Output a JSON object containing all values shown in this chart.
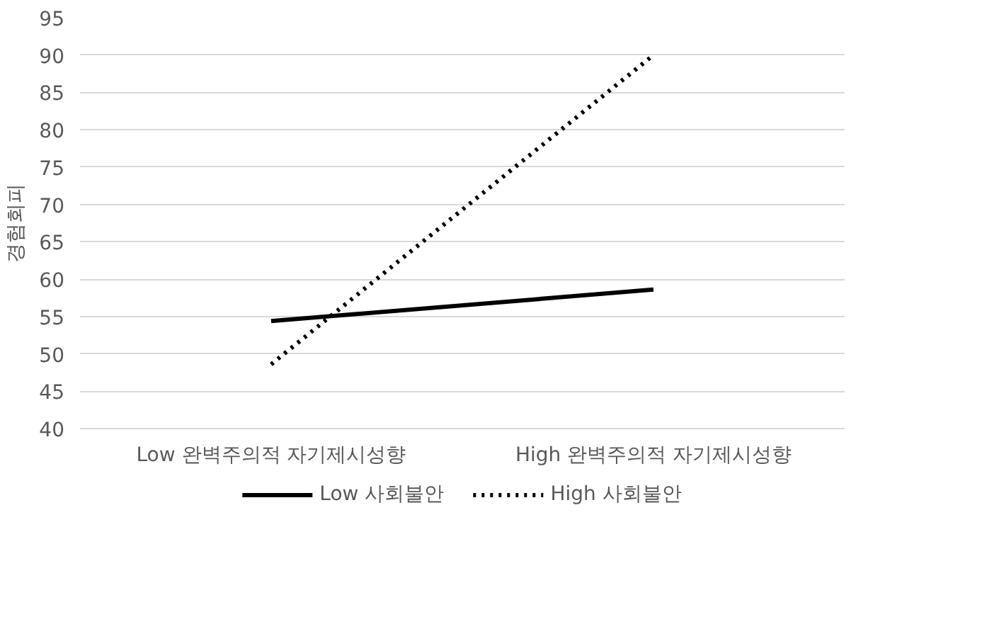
{
  "chart_data": {
    "type": "line",
    "ylabel": "경험회피",
    "categories": [
      "Low 완벽주의적 자기제시성향",
      "High 완벽주의적 자기제시성향"
    ],
    "series": [
      {
        "name": "Low 사회불안",
        "color": "#000000",
        "values": [
          54.4,
          58.6
        ],
        "line_style": "solid"
      },
      {
        "name": "High 사회불안",
        "color": "#000000",
        "values": [
          48.6,
          90
        ],
        "line_style": "dotted"
      }
    ],
    "ylim": [
      40,
      95
    ],
    "yticks": [
      40,
      45,
      50,
      55,
      60,
      65,
      70,
      75,
      80,
      85,
      90,
      95
    ],
    "grid": "y",
    "legend": "bottom",
    "marker": "none"
  }
}
